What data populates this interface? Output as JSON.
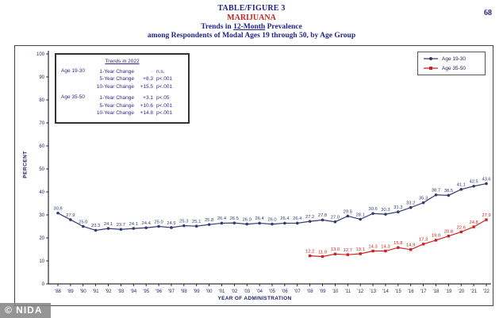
{
  "page": {
    "number": "68",
    "watermark": "© NIDA"
  },
  "colors": {
    "navy": "#22228a",
    "red": "#cc2222",
    "series_navy": "#333a73",
    "series_red": "#cc2222"
  },
  "header": {
    "line1": "TABLE/FIGURE 3",
    "line2": "MARIJUANA",
    "line3_pre": "Trends in ",
    "line3_underlined": "12-Month",
    "line3_post": " Prevalence",
    "line4": "among Respondents of Modal Ages 19 through 50, by Age Group"
  },
  "trends_box": {
    "title": "Trends in 2022",
    "groups": [
      {
        "name": "Age 19-30",
        "rows": [
          [
            "1-Year Change",
            "·",
            "n.s."
          ],
          [
            "5-Year Change",
            "+8.3",
            "p<.001"
          ],
          [
            "10-Year Change",
            "+15.5",
            "p<.001"
          ]
        ]
      },
      {
        "name": "Age 35-50",
        "rows": [
          [
            "1-Year Change",
            "+3.1",
            "p<.05"
          ],
          [
            "5-Year Change",
            "+10.6",
            "p<.001"
          ],
          [
            "10-Year Change",
            "+14.8",
            "p<.001"
          ]
        ]
      }
    ]
  },
  "legend": [
    {
      "label": "Age 19-30",
      "color": "#333a73",
      "marker": "circle"
    },
    {
      "label": "Age 35-50",
      "color": "#cc2222",
      "marker": "square"
    }
  ],
  "chart_data": {
    "type": "line",
    "title": "Marijuana: Trends in 12-Month Prevalence among Respondents of Modal Ages 19 through 50, by Age Group",
    "xlabel": "YEAR OF ADMINISTRATION",
    "ylabel": "PERCENT",
    "ylim": [
      0,
      100
    ],
    "yticks": [
      0,
      10,
      20,
      30,
      40,
      50,
      60,
      70,
      80,
      90,
      100
    ],
    "grid": false,
    "legend_position": "top-right",
    "x": [
      "'88",
      "'89",
      "'90",
      "'91",
      "'92",
      "'93",
      "'94",
      "'95",
      "'96",
      "'97",
      "'98",
      "'99",
      "'00",
      "'01",
      "'02",
      "'03",
      "'04",
      "'05",
      "'06",
      "'07",
      "'08",
      "'09",
      "'10",
      "'11",
      "'12",
      "'13",
      "'14",
      "'15",
      "'16",
      "'17",
      "'18",
      "'19",
      "'20",
      "'21",
      "'22"
    ],
    "series": [
      {
        "name": "Age 19-30",
        "color": "#333a73",
        "marker": "circle",
        "x_start_index": 0,
        "values": [
          30.8,
          27.9,
          25.0,
          23.3,
          24.1,
          23.7,
          24.1,
          24.4,
          25.0,
          24.5,
          25.3,
          25.1,
          25.8,
          26.4,
          26.5,
          26.0,
          26.4,
          26.0,
          26.4,
          26.4,
          27.2,
          27.8,
          27.0,
          29.5,
          28.1,
          30.6,
          30.3,
          31.3,
          33.2,
          35.3,
          38.7,
          38.5,
          41.1,
          42.5,
          43.6
        ]
      },
      {
        "name": "Age 35-50",
        "color": "#cc2222",
        "marker": "square",
        "x_start_index": 20,
        "values": [
          12.2,
          11.9,
          13.0,
          12.7,
          13.1,
          14.3,
          14.3,
          15.8,
          14.9,
          17.3,
          19.0,
          20.8,
          22.6,
          24.8,
          27.9
        ]
      }
    ]
  }
}
